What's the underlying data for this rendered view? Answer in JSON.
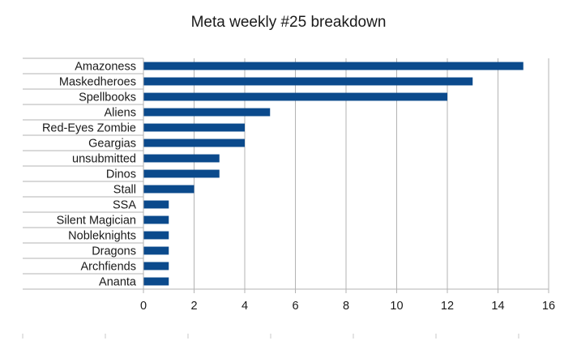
{
  "chart_data": {
    "type": "bar",
    "orientation": "horizontal",
    "title": "Meta weekly #25 breakdown",
    "categories": [
      "Amazoness",
      "Maskedheroes",
      "Spellbooks",
      "Aliens",
      "Red-Eyes Zombie",
      "Geargias",
      "unsubmitted",
      "Dinos",
      "Stall",
      "SSA",
      "Silent Magician",
      "Nobleknights",
      "Dragons",
      "Archfiends",
      "Ananta"
    ],
    "values": [
      15,
      13,
      12,
      5,
      4,
      4,
      3,
      3,
      2,
      1,
      1,
      1,
      1,
      1,
      1
    ],
    "xlabel": "",
    "ylabel": "",
    "xlim": [
      0,
      16
    ],
    "xticks": [
      "0",
      "2",
      "4",
      "6",
      "8",
      "10",
      "12",
      "14",
      "16"
    ],
    "grid": "vertical",
    "legend": "none",
    "bar_color": "#0b4a8c"
  }
}
